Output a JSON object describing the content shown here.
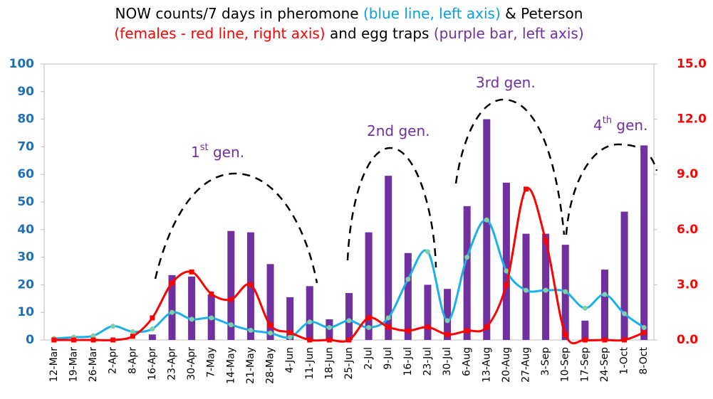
{
  "chart_data": {
    "type": "bar-line",
    "title_lines": [
      [
        {
          "text": "NOW counts/7 days in pheromone ",
          "color": "#000000"
        },
        {
          "text": "(blue line, left axis)",
          "color": "#0a9ee0"
        },
        {
          "text": " & Peterson",
          "color": "#000000"
        }
      ],
      [
        {
          "text": "(females - red line, right axis)",
          "color": "#ff0000"
        },
        {
          "text": " and egg traps ",
          "color": "#000000"
        },
        {
          "text": "(purple bar, left axis)",
          "color": "#7030a0"
        }
      ]
    ],
    "categories": [
      "12-Mar",
      "19-Mar",
      "26-Mar",
      "2-Apr",
      "8-Apr",
      "16-Apr",
      "23-Apr",
      "30-Apr",
      "7-May",
      "14-May",
      "21-May",
      "28-May",
      "4-Jun",
      "11-Jun",
      "18-Jun",
      "25-Jun",
      "2-Jul",
      "9-Jul",
      "16-Jul",
      "23-Jul",
      "30-Jul",
      "6-Aug",
      "13-Aug",
      "20-Aug",
      "27-Aug",
      "3-Sep",
      "10-Sep",
      "17-Sep",
      "24-Sep",
      "1-Oct",
      "8-Oct"
    ],
    "series": [
      {
        "kind": "bar",
        "color": "#7030a0",
        "values": [
          0,
          0,
          0,
          0,
          0,
          2,
          23.5,
          23,
          16.5,
          39.5,
          39,
          27.5,
          15.5,
          19.5,
          7.5,
          17,
          39,
          59.5,
          31.5,
          20,
          18.5,
          48.5,
          80,
          57,
          38.5,
          38.5,
          34.5,
          7,
          25.5,
          46.5,
          70.5
        ]
      },
      {
        "kind": "line",
        "color": "#1ab0e8",
        "marker_color": "#7fcfa8",
        "values": [
          0.5,
          1,
          1.5,
          5,
          3,
          4,
          10,
          7.5,
          8,
          5.5,
          3.5,
          2.5,
          1,
          6.5,
          4.5,
          7,
          4.5,
          8,
          22,
          32,
          7,
          30,
          43.5,
          25,
          18,
          18,
          17.5,
          11.5,
          16.5,
          9.5,
          4.5
        ]
      },
      {
        "kind": "line",
        "axis": "y2",
        "color": "#ff0000",
        "marker_color": "#ff0000",
        "values": [
          0,
          0,
          0,
          0,
          0.2,
          1.2,
          3.1,
          3.7,
          2.5,
          2.2,
          3.0,
          0.8,
          0.4,
          0,
          0,
          0,
          1.2,
          0.7,
          0.5,
          0.7,
          0.3,
          0.5,
          0.7,
          3.0,
          8.2,
          5.4,
          0.3,
          0,
          0,
          0,
          0.4
        ]
      }
    ],
    "ylim": [
      0,
      100
    ],
    "yticks": [
      0,
      10,
      20,
      30,
      40,
      50,
      60,
      70,
      80,
      90,
      100
    ],
    "y2lim": [
      0,
      15
    ],
    "y2ticks": [
      {
        "value": 0,
        "label": "0.0"
      },
      {
        "value": 3,
        "label": "3.0"
      },
      {
        "value": 6,
        "label": "6.0"
      },
      {
        "value": 9,
        "label": "9.0"
      },
      {
        "value": 12,
        "label": "12.0"
      },
      {
        "value": 15,
        "label": "15.0"
      }
    ],
    "annotations": [
      {
        "text": "1",
        "sup": "st",
        "rest": " gen."
      },
      {
        "text": "2nd gen."
      },
      {
        "text": "3rd gen."
      },
      {
        "text": "4",
        "sup": "th",
        "rest": " gen."
      }
    ]
  }
}
